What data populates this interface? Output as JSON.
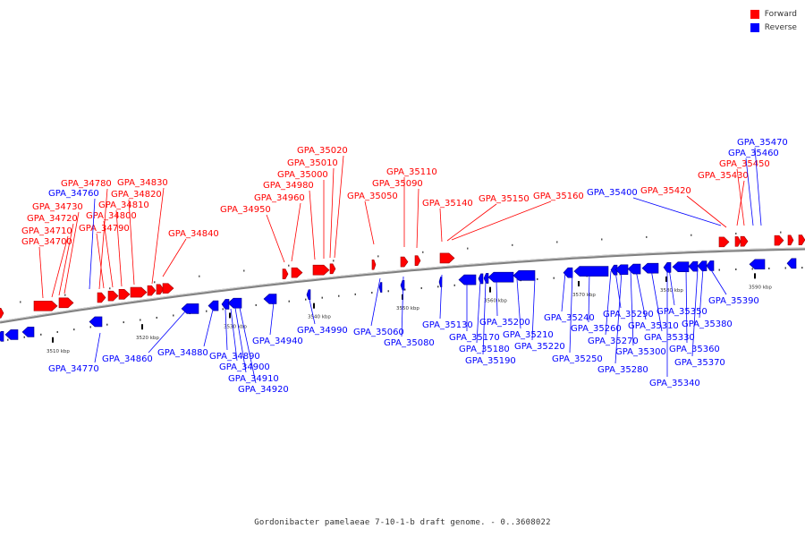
{
  "legend": {
    "forward_label": "Forward",
    "reverse_label": "Reverse",
    "forward_color": "#ff0000",
    "reverse_color": "#0000ff"
  },
  "caption": "Gordonibacter pamelaeae 7-10-1-b draft genome. - 0..3608022",
  "scale": {
    "ticks": [
      "3510 kbp",
      "3520 kbp",
      "3530 kbp",
      "3540 kbp",
      "3550 kbp",
      "3560 kbp",
      "3570 kbp",
      "3580 kbp",
      "3590 kbp"
    ]
  },
  "genes": {
    "forward": [
      "GPA_34700",
      "GPA_34710",
      "GPA_34720",
      "GPA_34730",
      "GPA_34780",
      "GPA_34790",
      "GPA_34800",
      "GPA_34810",
      "GPA_34820",
      "GPA_34830",
      "GPA_34840",
      "GPA_34950",
      "GPA_34960",
      "GPA_34980",
      "GPA_35000",
      "GPA_35010",
      "GPA_35020",
      "GPA_35050",
      "GPA_35090",
      "GPA_35110",
      "GPA_35140",
      "GPA_35150",
      "GPA_35160",
      "GPA_35420",
      "GPA_35430",
      "GPA_35450"
    ],
    "reverse": [
      "GPA_34760",
      "GPA_34770",
      "GPA_34860",
      "GPA_34880",
      "GPA_34890",
      "GPA_34900",
      "GPA_34910",
      "GPA_34920",
      "GPA_34940",
      "GPA_34990",
      "GPA_35060",
      "GPA_35080",
      "GPA_35130",
      "GPA_35170",
      "GPA_35180",
      "GPA_35190",
      "GPA_35200",
      "GPA_35210",
      "GPA_35220",
      "GPA_35240",
      "GPA_35250",
      "GPA_35260",
      "GPA_35270",
      "GPA_35280",
      "GPA_35290",
      "GPA_35300",
      "GPA_35310",
      "GPA_35330",
      "GPA_35340",
      "GPA_35350",
      "GPA_35360",
      "GPA_35370",
      "GPA_35380",
      "GPA_35390",
      "GPA_35400",
      "GPA_35460",
      "GPA_35470"
    ]
  }
}
